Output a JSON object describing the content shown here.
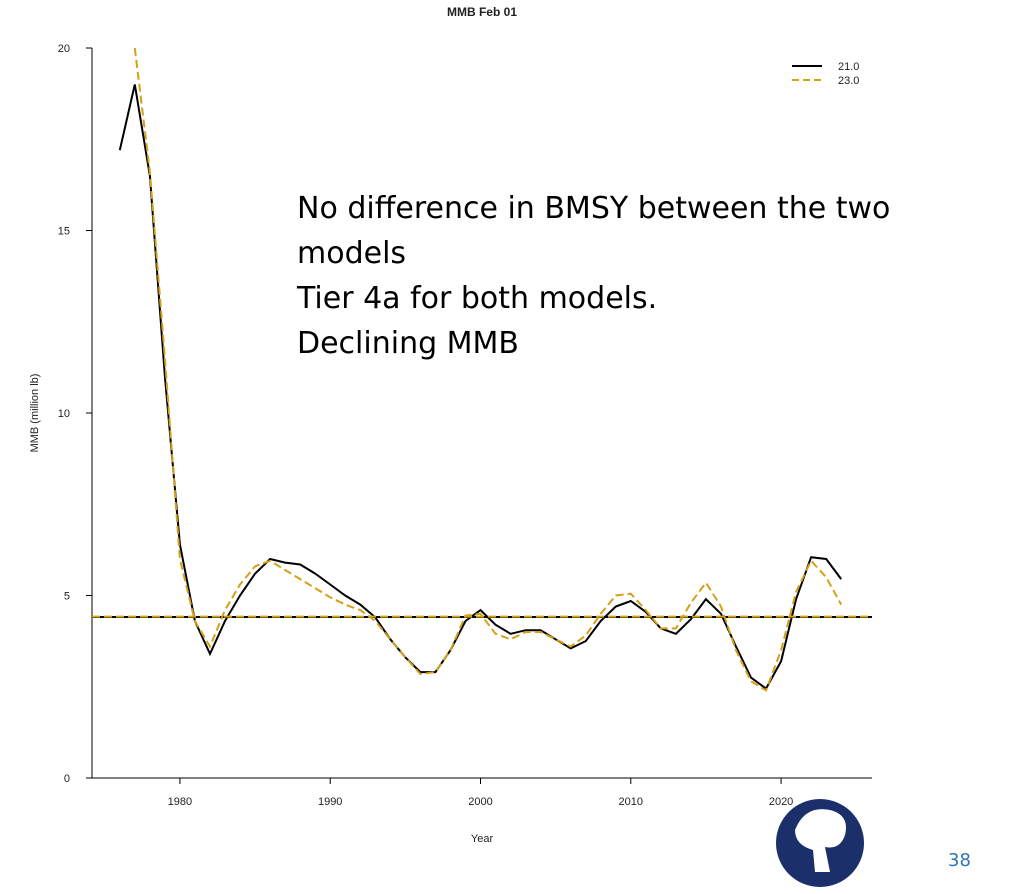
{
  "chart_data": {
    "type": "line",
    "title": "MMB Feb 01",
    "x_label": "Year",
    "y_label": "MMB (million lb)",
    "x": [
      1976,
      1977,
      1978,
      1979,
      1980,
      1981,
      1982,
      1983,
      1984,
      1985,
      1986,
      1987,
      1988,
      1989,
      1990,
      1991,
      1992,
      1993,
      1994,
      1995,
      1996,
      1997,
      1998,
      1999,
      2000,
      2001,
      2002,
      2003,
      2004,
      2005,
      2006,
      2007,
      2008,
      2009,
      2010,
      2011,
      2012,
      2013,
      2014,
      2015,
      2016,
      2017,
      2018,
      2019,
      2020,
      2021,
      2022,
      2023,
      2024
    ],
    "series": [
      {
        "name": "21.0",
        "color": "#000000",
        "dash": false,
        "bmsy": 4.41,
        "values": [
          17.2,
          19.0,
          16.5,
          11.0,
          6.4,
          4.3,
          3.4,
          4.3,
          5.0,
          5.6,
          6.0,
          5.9,
          5.85,
          5.6,
          5.3,
          5.0,
          4.75,
          4.4,
          3.8,
          3.3,
          2.9,
          2.9,
          3.5,
          4.3,
          4.6,
          4.2,
          3.95,
          4.05,
          4.05,
          3.8,
          3.55,
          3.75,
          4.3,
          4.7,
          4.85,
          4.55,
          4.1,
          3.95,
          4.35,
          4.9,
          4.5,
          3.6,
          2.75,
          2.45,
          3.2,
          4.9,
          6.05,
          6.0,
          5.45
        ]
      },
      {
        "name": "23.0",
        "color": "#d4a017",
        "dash": true,
        "bmsy": 4.42,
        "values": [
          null,
          20.0,
          16.6,
          11.5,
          6.0,
          4.3,
          3.6,
          4.6,
          5.3,
          5.8,
          5.95,
          5.7,
          5.45,
          5.2,
          4.95,
          4.75,
          4.6,
          4.3,
          3.8,
          3.3,
          2.85,
          2.9,
          3.5,
          4.45,
          4.5,
          3.95,
          3.8,
          4.0,
          4.0,
          3.8,
          3.6,
          3.9,
          4.5,
          5.0,
          5.05,
          4.6,
          4.1,
          4.1,
          4.8,
          5.35,
          4.7,
          3.5,
          2.65,
          2.4,
          3.5,
          5.1,
          5.95,
          5.5,
          4.75
        ]
      }
    ],
    "xlim": [
      1974.15,
      2026.05
    ],
    "xticks": [
      1980,
      1990,
      2000,
      2010,
      2020
    ],
    "ylim": [
      0,
      20
    ],
    "yticks": [
      0,
      5,
      10,
      15,
      20
    ],
    "legend": "top-right",
    "grid": false
  },
  "slide": {
    "annotation": [
      "No difference in BMSY between the two models",
      "Tier 4a for both models.",
      "Declining MMB"
    ],
    "page_number": "38"
  }
}
